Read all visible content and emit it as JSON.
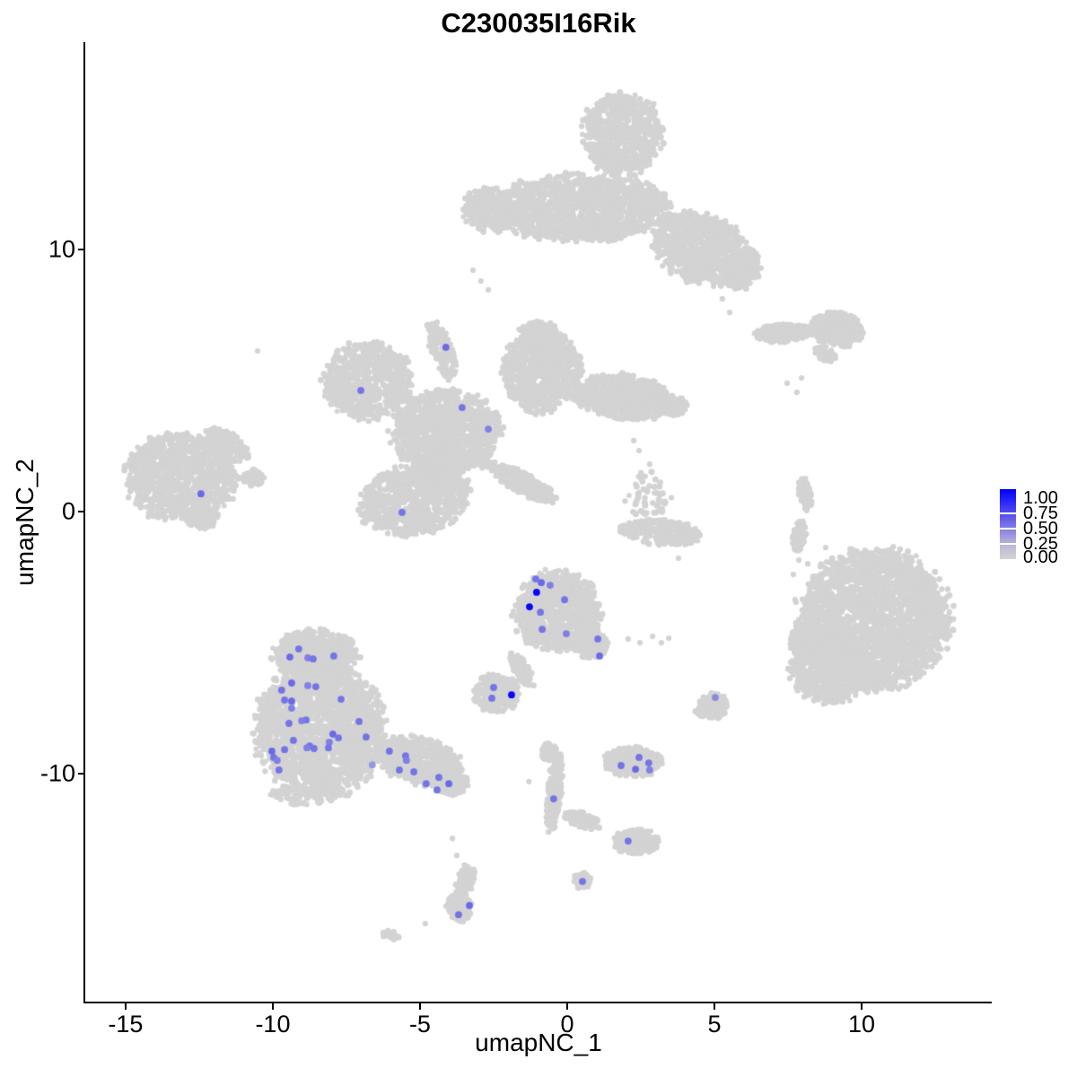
{
  "chart_data": {
    "type": "scatter",
    "title": "C230035I16Rik",
    "xlabel": "umapNC_1",
    "ylabel": "umapNC_2",
    "x_domain": [
      -16.37,
      14.42
    ],
    "y_domain": [
      -18.73,
      17.91
    ],
    "x_ticks": [
      -15,
      -10,
      -5,
      0,
      5,
      10
    ],
    "x_tick_labels": [
      "-15",
      "-10",
      "-5",
      "0",
      "5",
      "10"
    ],
    "y_ticks": [
      10,
      0,
      -10
    ],
    "y_tick_labels": [
      "10",
      "0",
      "-10"
    ],
    "grid": false,
    "legend": {
      "position": "right",
      "labels": [
        "1.00",
        "0.75",
        "0.50",
        "0.25",
        "0.00"
      ],
      "values": [
        1.0,
        0.75,
        0.5,
        0.25,
        0.0
      ],
      "color_low": "#D3D3D3",
      "color_high": "#0000FF"
    },
    "point_color_base": "#D3D3D3",
    "cluster_fields": [
      "cx",
      "cy",
      "rx",
      "ry",
      "rot_deg",
      "n"
    ],
    "clusters": [
      [
        1.86,
        14.38,
        1.37,
        1.58,
        -8,
        700
      ],
      [
        0.49,
        11.58,
        3.05,
        1.3,
        0,
        1400
      ],
      [
        -2.65,
        11.54,
        0.91,
        0.89,
        10,
        260
      ],
      [
        4.57,
        10.03,
        1.77,
        1.3,
        -25,
        900
      ],
      [
        5.95,
        9.25,
        0.6,
        0.86,
        -20,
        200
      ],
      [
        -13.11,
        1.3,
        1.89,
        1.71,
        -10,
        950
      ],
      [
        -11.55,
        2.53,
        0.85,
        0.45,
        -40,
        140
      ],
      [
        -10.7,
        1.27,
        0.4,
        0.34,
        0,
        60
      ],
      [
        -12.44,
        -0.24,
        0.55,
        0.41,
        0,
        80
      ],
      [
        -6.77,
        5.0,
        1.52,
        1.47,
        25,
        700
      ],
      [
        -4.12,
        3.05,
        1.89,
        1.64,
        0,
        1100
      ],
      [
        -4.27,
        6.16,
        0.37,
        1.2,
        18,
        150
      ],
      [
        -0.85,
        5.34,
        1.37,
        1.54,
        0,
        800
      ],
      [
        -0.98,
        6.78,
        0.67,
        0.48,
        0,
        150
      ],
      [
        1.92,
        4.38,
        1.68,
        0.86,
        -8,
        600
      ],
      [
        3.54,
        4.04,
        0.55,
        0.41,
        0,
        110
      ],
      [
        -5.18,
        0.45,
        1.89,
        1.37,
        15,
        850
      ],
      [
        -1.52,
        1.1,
        1.37,
        0.38,
        -32,
        260
      ],
      [
        -4.33,
        1.54,
        0.76,
        0.68,
        0,
        260
      ],
      [
        -0.34,
        -3.8,
        1.46,
        1.54,
        0,
        900
      ],
      [
        0.79,
        -5.03,
        0.61,
        0.55,
        -35,
        180
      ],
      [
        -1.55,
        -6.03,
        0.24,
        0.75,
        28,
        90
      ],
      [
        -2.41,
        -6.92,
        0.82,
        0.72,
        0,
        260
      ],
      [
        -8.54,
        -5.48,
        1.46,
        0.96,
        0,
        600
      ],
      [
        -8.38,
        -8.32,
        2.2,
        2.57,
        0,
        2000
      ],
      [
        -5.0,
        -9.52,
        1.46,
        0.89,
        -18,
        550
      ],
      [
        -3.9,
        -10.34,
        0.55,
        0.48,
        -20,
        140
      ],
      [
        -8.9,
        -10.79,
        1.22,
        0.41,
        0,
        90
      ],
      [
        -0.61,
        -9.18,
        0.3,
        0.34,
        0,
        60
      ],
      [
        -0.43,
        -10.68,
        0.24,
        1.54,
        -5,
        220
      ],
      [
        0.49,
        -11.75,
        0.67,
        0.27,
        -22,
        90
      ],
      [
        2.38,
        -12.6,
        0.79,
        0.48,
        0,
        200
      ],
      [
        2.26,
        -9.55,
        1.0,
        0.58,
        0,
        300
      ],
      [
        -3.45,
        -14.05,
        0.3,
        0.62,
        -14,
        120
      ],
      [
        -3.66,
        -15.1,
        0.45,
        0.55,
        10,
        160
      ],
      [
        0.52,
        -14.08,
        0.3,
        0.3,
        0,
        70
      ],
      [
        4.97,
        -7.4,
        0.49,
        0.48,
        0,
        160
      ],
      [
        4.6,
        -7.62,
        0.25,
        0.2,
        0,
        50
      ],
      [
        10.46,
        -4.11,
        2.59,
        2.67,
        0,
        2400
      ],
      [
        8.93,
        -5.89,
        1.37,
        1.44,
        0,
        700
      ],
      [
        7.96,
        -4.9,
        0.43,
        0.62,
        0,
        120
      ],
      [
        7.32,
        6.81,
        0.98,
        0.34,
        3,
        220
      ],
      [
        9.15,
        6.95,
        0.91,
        0.65,
        -8,
        420
      ],
      [
        8.75,
        6.03,
        0.4,
        0.24,
        -38,
        60
      ],
      [
        8.08,
        0.65,
        0.2,
        0.65,
        10,
        80
      ],
      [
        7.87,
        -0.92,
        0.22,
        0.6,
        -8,
        80
      ],
      [
        2.77,
        0.65,
        0.79,
        0.92,
        0,
        55
      ],
      [
        3.2,
        -0.79,
        1.34,
        0.51,
        -5,
        260
      ],
      [
        1.98,
        -0.68,
        0.2,
        0.18,
        0,
        40
      ],
      [
        -6.01,
        -16.16,
        0.3,
        0.18,
        -25,
        30
      ]
    ],
    "singles": [
      [
        -10.52,
        6.13
      ],
      [
        -3.2,
        9.21
      ],
      [
        -2.93,
        8.8
      ],
      [
        -2.68,
        8.46
      ],
      [
        5.27,
        8.12
      ],
      [
        5.52,
        7.6
      ],
      [
        7.47,
        4.9
      ],
      [
        7.8,
        4.55
      ],
      [
        7.96,
        5.1
      ],
      [
        2.26,
        2.71
      ],
      [
        2.44,
        2.33
      ],
      [
        2.8,
        1.81
      ],
      [
        2.07,
        -4.86
      ],
      [
        2.47,
        -5.0
      ],
      [
        2.9,
        -4.76
      ],
      [
        3.2,
        -5.0
      ],
      [
        3.45,
        -4.83
      ],
      [
        7.68,
        -2.4
      ],
      [
        8.17,
        -1.99
      ],
      [
        8.54,
        -2.74
      ],
      [
        7.74,
        -3.36
      ],
      [
        9.09,
        -2.4
      ],
      [
        8.32,
        -3.25
      ],
      [
        8.78,
        -1.37
      ],
      [
        7.96,
        -1.03
      ],
      [
        7.87,
        -1.85
      ],
      [
        -3.9,
        -12.47
      ],
      [
        -3.75,
        -13.12
      ],
      [
        -4.82,
        -15.72
      ],
      [
        -1.3,
        -10.3
      ],
      [
        3.78,
        -1.78
      ]
    ],
    "expressing_cell_fields": [
      "x",
      "y",
      "expression"
    ],
    "expressing_cells": [
      [
        -9.12,
        -5.24,
        0.45
      ],
      [
        -9.42,
        -5.55,
        0.5
      ],
      [
        -8.81,
        -5.58,
        0.4
      ],
      [
        -8.63,
        -5.62,
        0.45
      ],
      [
        -7.93,
        -5.51,
        0.45
      ],
      [
        -9.36,
        -6.54,
        0.5
      ],
      [
        -9.7,
        -6.81,
        0.45
      ],
      [
        -8.81,
        -6.64,
        0.4
      ],
      [
        -8.54,
        -6.68,
        0.45
      ],
      [
        -9.6,
        -7.19,
        0.45
      ],
      [
        -9.36,
        -7.23,
        0.5
      ],
      [
        -7.68,
        -7.16,
        0.45
      ],
      [
        -9.36,
        -7.5,
        0.4
      ],
      [
        -8.87,
        -7.95,
        0.45
      ],
      [
        -9.02,
        -7.98,
        0.4
      ],
      [
        -9.45,
        -8.08,
        0.45
      ],
      [
        -7.07,
        -8.01,
        0.45
      ],
      [
        -9.3,
        -8.73,
        0.45
      ],
      [
        -7.96,
        -8.49,
        0.5
      ],
      [
        -7.77,
        -8.63,
        0.45
      ],
      [
        -8.08,
        -8.8,
        0.4
      ],
      [
        -8.11,
        -9.01,
        0.45
      ],
      [
        -8.75,
        -8.94,
        0.45
      ],
      [
        -8.84,
        -9.01,
        0.4
      ],
      [
        -8.6,
        -9.04,
        0.45
      ],
      [
        -9.6,
        -9.08,
        0.45
      ],
      [
        -10.03,
        -9.14,
        0.5
      ],
      [
        -9.97,
        -9.38,
        0.45
      ],
      [
        -9.85,
        -9.49,
        0.4
      ],
      [
        -6.83,
        -8.6,
        0.45
      ],
      [
        -9.79,
        -9.86,
        0.45
      ],
      [
        -6.62,
        -9.66,
        0.28
      ],
      [
        -6.04,
        -9.14,
        0.45
      ],
      [
        -5.49,
        -9.32,
        0.45
      ],
      [
        -5.46,
        -9.49,
        0.4
      ],
      [
        -5.7,
        -9.86,
        0.45
      ],
      [
        -5.21,
        -9.93,
        0.45
      ],
      [
        -4.36,
        -10.14,
        0.45
      ],
      [
        -4.02,
        -10.38,
        0.5
      ],
      [
        -4.79,
        -10.38,
        0.45
      ],
      [
        -4.42,
        -10.62,
        0.45
      ],
      [
        -1.07,
        -2.57,
        0.45
      ],
      [
        -0.88,
        -2.71,
        0.5
      ],
      [
        -0.58,
        -2.81,
        0.4
      ],
      [
        -1.04,
        -3.08,
        0.97
      ],
      [
        -0.09,
        -3.36,
        0.45
      ],
      [
        -1.28,
        -3.63,
        0.97
      ],
      [
        -0.91,
        -3.84,
        0.45
      ],
      [
        -0.85,
        -4.49,
        0.45
      ],
      [
        -0.03,
        -4.66,
        0.4
      ],
      [
        1.04,
        -4.86,
        0.45
      ],
      [
        1.1,
        -5.51,
        0.5
      ],
      [
        -2.5,
        -6.71,
        0.45
      ],
      [
        -2.56,
        -7.12,
        0.45
      ],
      [
        -1.89,
        -6.99,
        0.97
      ],
      [
        -4.12,
        6.27,
        0.5
      ],
      [
        -7.01,
        4.62,
        0.45
      ],
      [
        -3.57,
        3.97,
        0.45
      ],
      [
        -2.68,
        3.15,
        0.4
      ],
      [
        -5.61,
        -0.03,
        0.45
      ],
      [
        -12.44,
        0.68,
        0.5
      ],
      [
        1.83,
        -9.69,
        0.45
      ],
      [
        2.32,
        -9.83,
        0.5
      ],
      [
        2.44,
        -9.38,
        0.45
      ],
      [
        2.77,
        -9.59,
        0.45
      ],
      [
        2.8,
        -9.86,
        0.4
      ],
      [
        -0.46,
        -10.96,
        0.45
      ],
      [
        2.07,
        -12.57,
        0.45
      ],
      [
        0.52,
        -14.11,
        0.45
      ],
      [
        -3.32,
        -15.03,
        0.5
      ],
      [
        -3.69,
        -15.38,
        0.45
      ],
      [
        5.03,
        -7.09,
        0.35
      ]
    ]
  }
}
